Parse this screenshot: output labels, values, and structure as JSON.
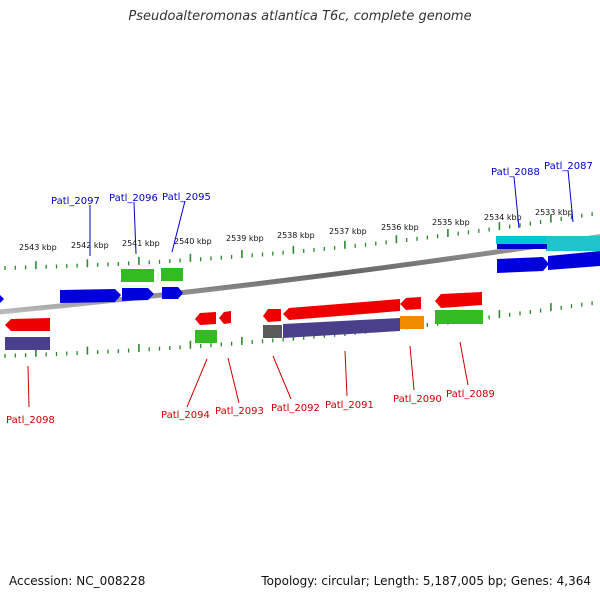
{
  "title": "Pseudoalteromonas atlantica T6c, complete genome",
  "footer": {
    "accession": "Accession: NC_008228",
    "info": "Topology: circular; Length: 5,187,005 bp; Genes: 4,364"
  },
  "colors": {
    "forward_cds": "#0000dd",
    "reverse_cds": "#ee0000",
    "go_green": "#33bb22",
    "purple_band": "#4a3f8a",
    "cyan": "#00c8d8",
    "orange": "#f08c00",
    "tick": "#2a8a2a",
    "label_forward": "#0000cc",
    "label_reverse": "#cc0000",
    "backbone": "#888888"
  },
  "ruler": {
    "unit": "kbp",
    "ticks": [
      "2543 kbp",
      "2542 kbp",
      "2541 kbp",
      "2540 kbp",
      "2539 kbp",
      "2538 kbp",
      "2537 kbp",
      "2536 kbp",
      "2535 kbp",
      "2534 kbp",
      "2533 kbp"
    ]
  },
  "genes_forward": [
    "Patl_2097",
    "Patl_2096",
    "Patl_2095",
    "Patl_2088",
    "Patl_2087"
  ],
  "genes_reverse": [
    "Patl_2098",
    "Patl_2094",
    "Patl_2093",
    "Patl_2092",
    "Patl_2091",
    "Patl_2090",
    "Patl_2089"
  ]
}
